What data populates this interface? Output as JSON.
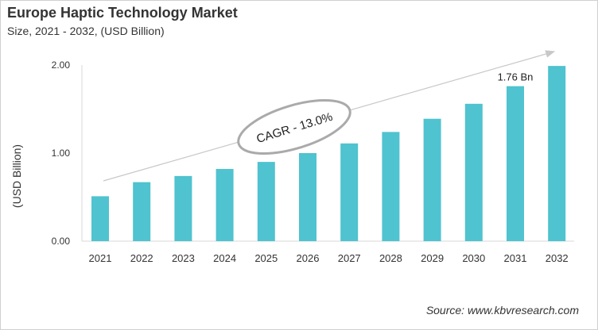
{
  "chart_data": {
    "type": "bar",
    "title": "Europe Haptic Technology Market",
    "subtitle": "Size, 2021 - 2032, (USD Billion)",
    "xlabel": "",
    "ylabel": "(USD Billion)",
    "categories": [
      "2021",
      "2022",
      "2023",
      "2024",
      "2025",
      "2026",
      "2027",
      "2028",
      "2029",
      "2030",
      "2031",
      "2032"
    ],
    "values": [
      0.51,
      0.67,
      0.74,
      0.82,
      0.9,
      1.0,
      1.11,
      1.24,
      1.39,
      1.56,
      1.76,
      1.99
    ],
    "ylim": [
      0,
      2.0
    ],
    "yticks": [
      "0.00",
      "1.00",
      "2.00"
    ],
    "grid": false,
    "bar_color": "#4fc3cf",
    "annotations": {
      "cagr": "CAGR - 13.0%",
      "value_label": "1.76 Bn",
      "value_label_category": "2031"
    },
    "source": "Source: www.kbvresearch.com"
  }
}
